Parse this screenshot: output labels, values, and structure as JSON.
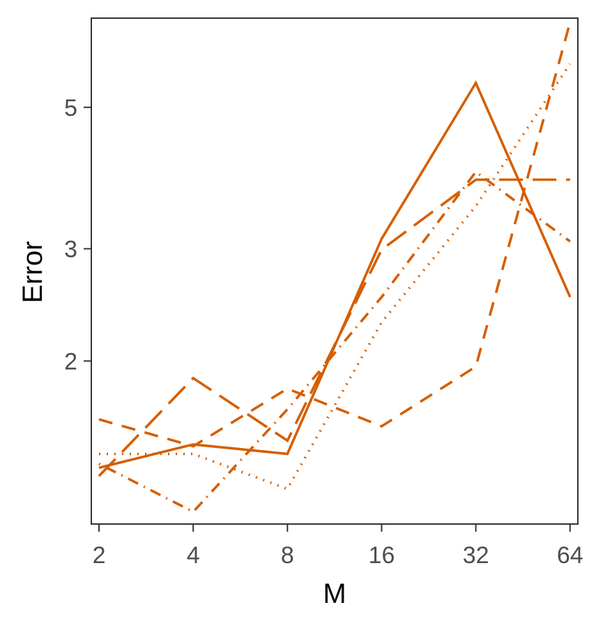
{
  "chart_data": {
    "type": "line",
    "title": "",
    "xlabel": "M",
    "ylabel": "Error",
    "x_scale": "log2",
    "y_scale": "log",
    "x": [
      2,
      4,
      8,
      16,
      32,
      64
    ],
    "x_tick_labels": [
      "2",
      "4",
      "8",
      "16",
      "32",
      "64"
    ],
    "y_ticks": [
      2,
      3,
      5
    ],
    "y_tick_labels": [
      "2",
      "3",
      "5"
    ],
    "xlim": [
      1.89,
      67.8
    ],
    "ylim": [
      1.11,
      6.9
    ],
    "grid": false,
    "legend": "none",
    "color": "#d55e00",
    "series": [
      {
        "style": "solid",
        "values": [
          1.36,
          1.48,
          1.43,
          3.11,
          5.46,
          2.52
        ]
      },
      {
        "style": "longdash",
        "values": [
          1.32,
          1.88,
          1.5,
          2.99,
          3.85,
          3.85
        ]
      },
      {
        "style": "dashed",
        "values": [
          1.62,
          1.47,
          1.81,
          1.58,
          1.96,
          6.8
        ]
      },
      {
        "style": "dotted",
        "values": [
          1.43,
          1.43,
          1.26,
          2.3,
          3.5,
          5.85
        ]
      },
      {
        "style": "dotdash",
        "values": [
          1.38,
          1.16,
          1.68,
          2.52,
          3.96,
          3.08
        ]
      }
    ]
  }
}
